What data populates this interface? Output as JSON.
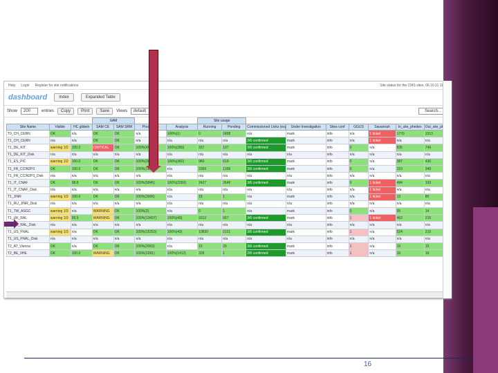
{
  "topbar": {
    "help": "Help",
    "login": "Login",
    "register": "Register for site notifications",
    "status": "Site status for the CMS sites, 06.10.11 11:2"
  },
  "brand": {
    "logo": "dashboard",
    "tab_index": "Index",
    "tab_expanded": "Expanded Table"
  },
  "toolbar": {
    "show": "Show",
    "entries_value": "200",
    "entries": "entries",
    "copy": "Copy",
    "print": "Print",
    "save": "Save",
    "views_label": "Views",
    "views_value": "default",
    "search": "Search..."
  },
  "table": {
    "headers": [
      "Site Name",
      "Visible",
      "HC glidein",
      "SAM CE",
      "SAM SRM",
      "Production",
      "Analysis",
      "Running",
      "Pending",
      "Commissioned Links (expand this column)",
      "Under Investigation",
      "Sites conf",
      "GGUS",
      "Savannah",
      "In_site_phedex",
      "Out_site_phedex"
    ],
    "group_sam": "SAM",
    "group_usage": "Site usage",
    "rows": [
      [
        "T0_CH_CERN",
        "OK",
        "n/a",
        "OK",
        "OK",
        "n/a",
        "100%(1)",
        "0",
        "1858",
        "n/a",
        "mark",
        "info",
        "n/a",
        "1 ticket",
        "1770",
        "3313"
      ],
      [
        "T1_CH_CERN",
        "n/a",
        "n/a",
        "OK",
        "OK",
        "n/a",
        "n/a",
        "n/a",
        "n/a",
        "2/6 confirmed",
        "mark",
        "info",
        "n/a",
        "1 ticket",
        "n/a",
        "n/a"
      ],
      [
        "T1_DE_KIT",
        "warning 1/2",
        "100.0",
        "CRITICAL",
        "OK",
        "100%(4948)",
        "100%(280)",
        "337",
        "137",
        "3/6 confirmed",
        "mark",
        "info",
        "0",
        "n/a",
        "835",
        "749"
      ],
      [
        "T1_DE_KIT_Disk",
        "n/a",
        "n/a",
        "n/a",
        "n/a",
        "n/a",
        "n/a",
        "n/a",
        "n/a",
        "n/a",
        "n/a",
        "info",
        "n/a",
        "n/a",
        "n/a",
        "n/a"
      ],
      [
        "T1_ES_PIC",
        "warning 1/2",
        "100.0",
        "OK",
        "OK",
        "100%(3048)",
        "100%(382)",
        "983",
        "619",
        "3/6 confirmed",
        "mark",
        "info",
        "0",
        "n/a",
        "387",
        "430"
      ],
      [
        "T1_FR_CCIN2P3",
        "OK",
        "100.0",
        "OK",
        "OK",
        "100%(16690)",
        "n/a",
        "2365",
        "1356",
        "3/6 confirmed",
        "mark",
        "info",
        "0",
        "n/a",
        "153",
        "349"
      ],
      [
        "T1_FR_CCIN2P3_Disk",
        "n/a",
        "n/a",
        "n/a",
        "n/a",
        "n/a",
        "n/a",
        "n/a",
        "n/a",
        "n/a",
        "n/a",
        "info",
        "n/a",
        "n/a",
        "n/a",
        "n/a"
      ],
      [
        "T1_IT_CNAF",
        "OK",
        "98.8",
        "OK",
        "OK",
        "100%(5845)",
        "100%(2260)",
        "2427",
        "2649",
        "3/6 confirmed",
        "mark",
        "info",
        "0",
        "1 ticket",
        "494",
        "193"
      ],
      [
        "T1_IT_CNAF_Disk",
        "n/a",
        "n/a",
        "n/a",
        "n/a",
        "n/a",
        "n/a",
        "n/a",
        "n/a",
        "n/a",
        "n/a",
        "info",
        "n/a",
        "1 ticket",
        "n/a",
        "n/a"
      ],
      [
        "T1_JINR",
        "warning 1/3",
        "100.0",
        "OK",
        "OK",
        "100%(3906)",
        "n/a",
        "18",
        "1",
        "n/a",
        "mark",
        "info",
        "n/a",
        "1 ticket",
        "13",
        "80"
      ],
      [
        "T1_RU_JINR_Disk",
        "n/a",
        "n/a",
        "n/a",
        "n/a",
        "n/a",
        "n/a",
        "n/a",
        "n/a",
        "n/a",
        "n/a",
        "info",
        "n/a",
        "n/a",
        "n/a",
        "n/a"
      ],
      [
        "T1_TW_ASGC",
        "warning 1/3",
        "n/a",
        "WARNING",
        "OK",
        "100%(2)",
        "n/a",
        "0",
        "1",
        "n/a",
        "mark",
        "info",
        "0",
        "n/a",
        "95",
        "14"
      ],
      [
        "T1_UK_RAL",
        "warning 1/3",
        "99.5",
        "WARNING",
        "OK",
        "100%(13437)",
        "100%(49)",
        "3312",
        "657",
        "3/6 confirmed",
        "mark",
        "info",
        "1",
        "1 ticket",
        "463",
        "215"
      ],
      [
        "T1_UK_RAL_Disk",
        "n/a",
        "n/a",
        "n/a",
        "n/a",
        "n/a",
        "n/a",
        "n/a",
        "n/a",
        "n/a",
        "n/a",
        "info",
        "n/a",
        "n/a",
        "n/a",
        "n/a"
      ],
      [
        "T1_US_FNAL",
        "warning 1/3",
        "n/a",
        "OK",
        "OK",
        "100%(15253)",
        "100%(43)",
        "10830",
        "2121",
        "3/6 confirmed",
        "mark",
        "info",
        "1",
        "n/a",
        "524",
        "215"
      ],
      [
        "T1_US_FNAL_Disk",
        "n/a",
        "n/a",
        "n/a",
        "n/a",
        "n/a",
        "n/a",
        "n/a",
        "n/a",
        "n/a",
        "n/a",
        "info",
        "n/a",
        "n/a",
        "n/a",
        "n/a"
      ],
      [
        "T2_AT_Vienna",
        "OK",
        "n/a",
        "OK",
        "OK",
        "100%(2003)",
        "n/a",
        "15",
        "29",
        "3/6 confirmed",
        "mark",
        "info",
        "1",
        "n/a",
        "15",
        "15"
      ],
      [
        "T2_BE_IIHE",
        "OK",
        "100.0",
        "WARNING",
        "OK",
        "100%(1091)",
        "100%(1412)",
        "328",
        "1",
        "2/6 confirmed",
        "mark",
        "info",
        "1",
        "n/a",
        "16",
        "16"
      ]
    ]
  },
  "slide": {
    "page_number": "16"
  }
}
